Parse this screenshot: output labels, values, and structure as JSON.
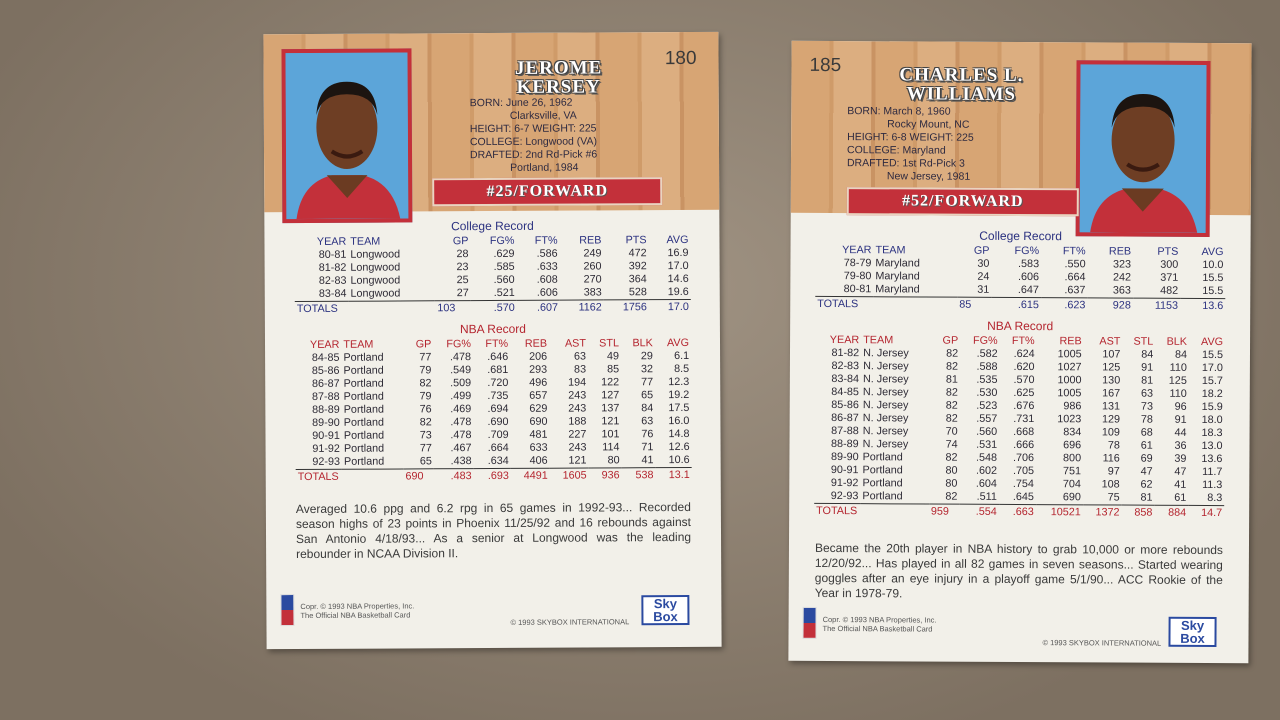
{
  "cards": [
    {
      "number": "180",
      "name": [
        "JEROME",
        "KERSEY"
      ],
      "bio": [
        "BORN: June 26, 1962",
        "Clarksville, VA",
        "HEIGHT: 6-7 WEIGHT: 225",
        "COLLEGE: Longwood (VA)",
        "DRAFTED: 2nd Rd-Pick #6",
        "Portland, 1984"
      ],
      "position": "#25/FORWARD",
      "college": {
        "title": "College Record",
        "header": [
          "YEAR",
          "TEAM",
          "GP",
          "FG%",
          "FT%",
          "REB",
          "PTS",
          "AVG"
        ],
        "rows": [
          [
            "80-81",
            "Longwood",
            "28",
            ".629",
            ".586",
            "249",
            "472",
            "16.9"
          ],
          [
            "81-82",
            "Longwood",
            "23",
            ".585",
            ".633",
            "260",
            "392",
            "17.0"
          ],
          [
            "82-83",
            "Longwood",
            "25",
            ".560",
            ".608",
            "270",
            "364",
            "14.6"
          ],
          [
            "83-84",
            "Longwood",
            "27",
            ".521",
            ".606",
            "383",
            "528",
            "19.6"
          ]
        ],
        "totals": [
          "TOTALS",
          "103",
          ".570",
          ".607",
          "1162",
          "1756",
          "17.0"
        ]
      },
      "nba": {
        "title": "NBA Record",
        "header": [
          "YEAR",
          "TEAM",
          "GP",
          "FG%",
          "FT%",
          "REB",
          "AST",
          "STL",
          "BLK",
          "AVG"
        ],
        "rows": [
          [
            "84-85",
            "Portland",
            "77",
            ".478",
            ".646",
            "206",
            "63",
            "49",
            "29",
            "6.1"
          ],
          [
            "85-86",
            "Portland",
            "79",
            ".549",
            ".681",
            "293",
            "83",
            "85",
            "32",
            "8.5"
          ],
          [
            "86-87",
            "Portland",
            "82",
            ".509",
            ".720",
            "496",
            "194",
            "122",
            "77",
            "12.3"
          ],
          [
            "87-88",
            "Portland",
            "79",
            ".499",
            ".735",
            "657",
            "243",
            "127",
            "65",
            "19.2"
          ],
          [
            "88-89",
            "Portland",
            "76",
            ".469",
            ".694",
            "629",
            "243",
            "137",
            "84",
            "17.5"
          ],
          [
            "89-90",
            "Portland",
            "82",
            ".478",
            ".690",
            "690",
            "188",
            "121",
            "63",
            "16.0"
          ],
          [
            "90-91",
            "Portland",
            "73",
            ".478",
            ".709",
            "481",
            "227",
            "101",
            "76",
            "14.8"
          ],
          [
            "91-92",
            "Portland",
            "77",
            ".467",
            ".664",
            "633",
            "243",
            "114",
            "71",
            "12.6"
          ],
          [
            "92-93",
            "Portland",
            "65",
            ".438",
            ".634",
            "406",
            "121",
            "80",
            "41",
            "10.6"
          ]
        ],
        "totals": [
          "TOTALS",
          "690",
          ".483",
          ".693",
          "4491",
          "1605",
          "936",
          "538",
          "13.1"
        ]
      },
      "blurb": "Averaged 10.6 ppg and 6.2 rpg in 65 games in 1992-93... Recorded season highs of 23 points in Phoenix 11/25/92 and 16 rebounds against San Antonio 4/18/93... As a senior at Longwood was the leading rebounder in NCAA Division II.",
      "legal": [
        "Copr. © 1993 NBA Properties, Inc.",
        "The Official NBA Basketball Card"
      ],
      "copyright": "© 1993 SKYBOX INTERNATIONAL",
      "logo": [
        "Sky",
        "Box"
      ]
    },
    {
      "number": "185",
      "name": [
        "CHARLES L.",
        "WILLIAMS"
      ],
      "bio": [
        "BORN: March 8, 1960",
        "Rocky Mount, NC",
        "HEIGHT: 6-8 WEIGHT: 225",
        "COLLEGE: Maryland",
        "DRAFTED: 1st Rd-Pick 3",
        "New Jersey, 1981"
      ],
      "position": "#52/FORWARD",
      "college": {
        "title": "College Record",
        "header": [
          "YEAR",
          "TEAM",
          "GP",
          "FG%",
          "FT%",
          "REB",
          "PTS",
          "AVG"
        ],
        "rows": [
          [
            "78-79",
            "Maryland",
            "30",
            ".583",
            ".550",
            "323",
            "300",
            "10.0"
          ],
          [
            "79-80",
            "Maryland",
            "24",
            ".606",
            ".664",
            "242",
            "371",
            "15.5"
          ],
          [
            "80-81",
            "Maryland",
            "31",
            ".647",
            ".637",
            "363",
            "482",
            "15.5"
          ]
        ],
        "totals": [
          "TOTALS",
          "85",
          ".615",
          ".623",
          "928",
          "1153",
          "13.6"
        ]
      },
      "nba": {
        "title": "NBA Record",
        "header": [
          "YEAR",
          "TEAM",
          "GP",
          "FG%",
          "FT%",
          "REB",
          "AST",
          "STL",
          "BLK",
          "AVG"
        ],
        "rows": [
          [
            "81-82",
            "N. Jersey",
            "82",
            ".582",
            ".624",
            "1005",
            "107",
            "84",
            "84",
            "15.5"
          ],
          [
            "82-83",
            "N. Jersey",
            "82",
            ".588",
            ".620",
            "1027",
            "125",
            "91",
            "110",
            "17.0"
          ],
          [
            "83-84",
            "N. Jersey",
            "81",
            ".535",
            ".570",
            "1000",
            "130",
            "81",
            "125",
            "15.7"
          ],
          [
            "84-85",
            "N. Jersey",
            "82",
            ".530",
            ".625",
            "1005",
            "167",
            "63",
            "110",
            "18.2"
          ],
          [
            "85-86",
            "N. Jersey",
            "82",
            ".523",
            ".676",
            "986",
            "131",
            "73",
            "96",
            "15.9"
          ],
          [
            "86-87",
            "N. Jersey",
            "82",
            ".557",
            ".731",
            "1023",
            "129",
            "78",
            "91",
            "18.0"
          ],
          [
            "87-88",
            "N. Jersey",
            "70",
            ".560",
            ".668",
            "834",
            "109",
            "68",
            "44",
            "18.3"
          ],
          [
            "88-89",
            "N. Jersey",
            "74",
            ".531",
            ".666",
            "696",
            "78",
            "61",
            "36",
            "13.0"
          ],
          [
            "89-90",
            "Portland",
            "82",
            ".548",
            ".706",
            "800",
            "116",
            "69",
            "39",
            "13.6"
          ],
          [
            "90-91",
            "Portland",
            "80",
            ".602",
            ".705",
            "751",
            "97",
            "47",
            "47",
            "11.7"
          ],
          [
            "91-92",
            "Portland",
            "80",
            ".604",
            ".754",
            "704",
            "108",
            "62",
            "41",
            "11.3"
          ],
          [
            "92-93",
            "Portland",
            "82",
            ".511",
            ".645",
            "690",
            "75",
            "81",
            "61",
            "8.3"
          ]
        ],
        "totals": [
          "TOTALS",
          "959",
          ".554",
          ".663",
          "10521",
          "1372",
          "858",
          "884",
          "14.7"
        ]
      },
      "blurb": "Became the 20th player in NBA history to grab 10,000 or more rebounds 12/20/92... Has played in all 82 games in seven seasons... Started wearing goggles after an eye injury in a playoff game 5/1/90... ACC Rookie of the Year in 1978-79.",
      "legal": [
        "Copr. © 1993 NBA Properties, Inc.",
        "The Official NBA Basketball Card"
      ],
      "copyright": "© 1993 SKYBOX INTERNATIONAL",
      "logo": [
        "Sky",
        "Box"
      ]
    }
  ]
}
